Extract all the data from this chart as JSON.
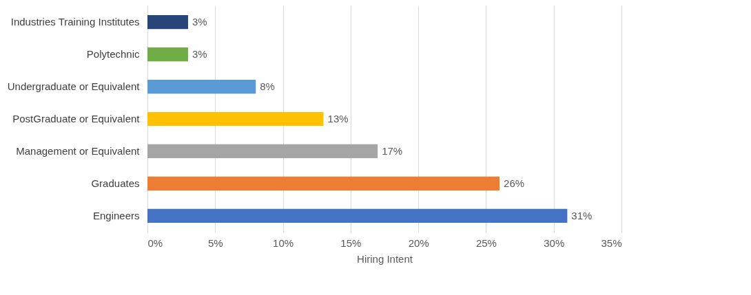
{
  "chart_data": {
    "type": "bar",
    "orientation": "horizontal",
    "xlabel": "Hiring Intent",
    "categories": [
      "Industries Training Institutes",
      "Polytechnic",
      "Undergraduate or Equivalent",
      "PostGraduate or Equivalent",
      "Management or Equivalent",
      "Graduates",
      "Engineers"
    ],
    "values": [
      3,
      3,
      8,
      13,
      17,
      26,
      31
    ],
    "value_labels": [
      "3%",
      "3%",
      "8%",
      "13%",
      "17%",
      "26%",
      "31%"
    ],
    "colors": [
      "#264478",
      "#70ad47",
      "#5b9bd5",
      "#ffc000",
      "#a5a5a5",
      "#ed7d31",
      "#4472c4"
    ],
    "xlim": [
      0,
      35
    ],
    "xticks": [
      {
        "value": 0,
        "label": "0%"
      },
      {
        "value": 5,
        "label": "5%"
      },
      {
        "value": 10,
        "label": "10%"
      },
      {
        "value": 15,
        "label": "15%"
      },
      {
        "value": 20,
        "label": "20%"
      },
      {
        "value": 25,
        "label": "25%"
      },
      {
        "value": 30,
        "label": "30%"
      },
      {
        "value": 35,
        "label": "35%"
      }
    ],
    "grid": "x"
  }
}
